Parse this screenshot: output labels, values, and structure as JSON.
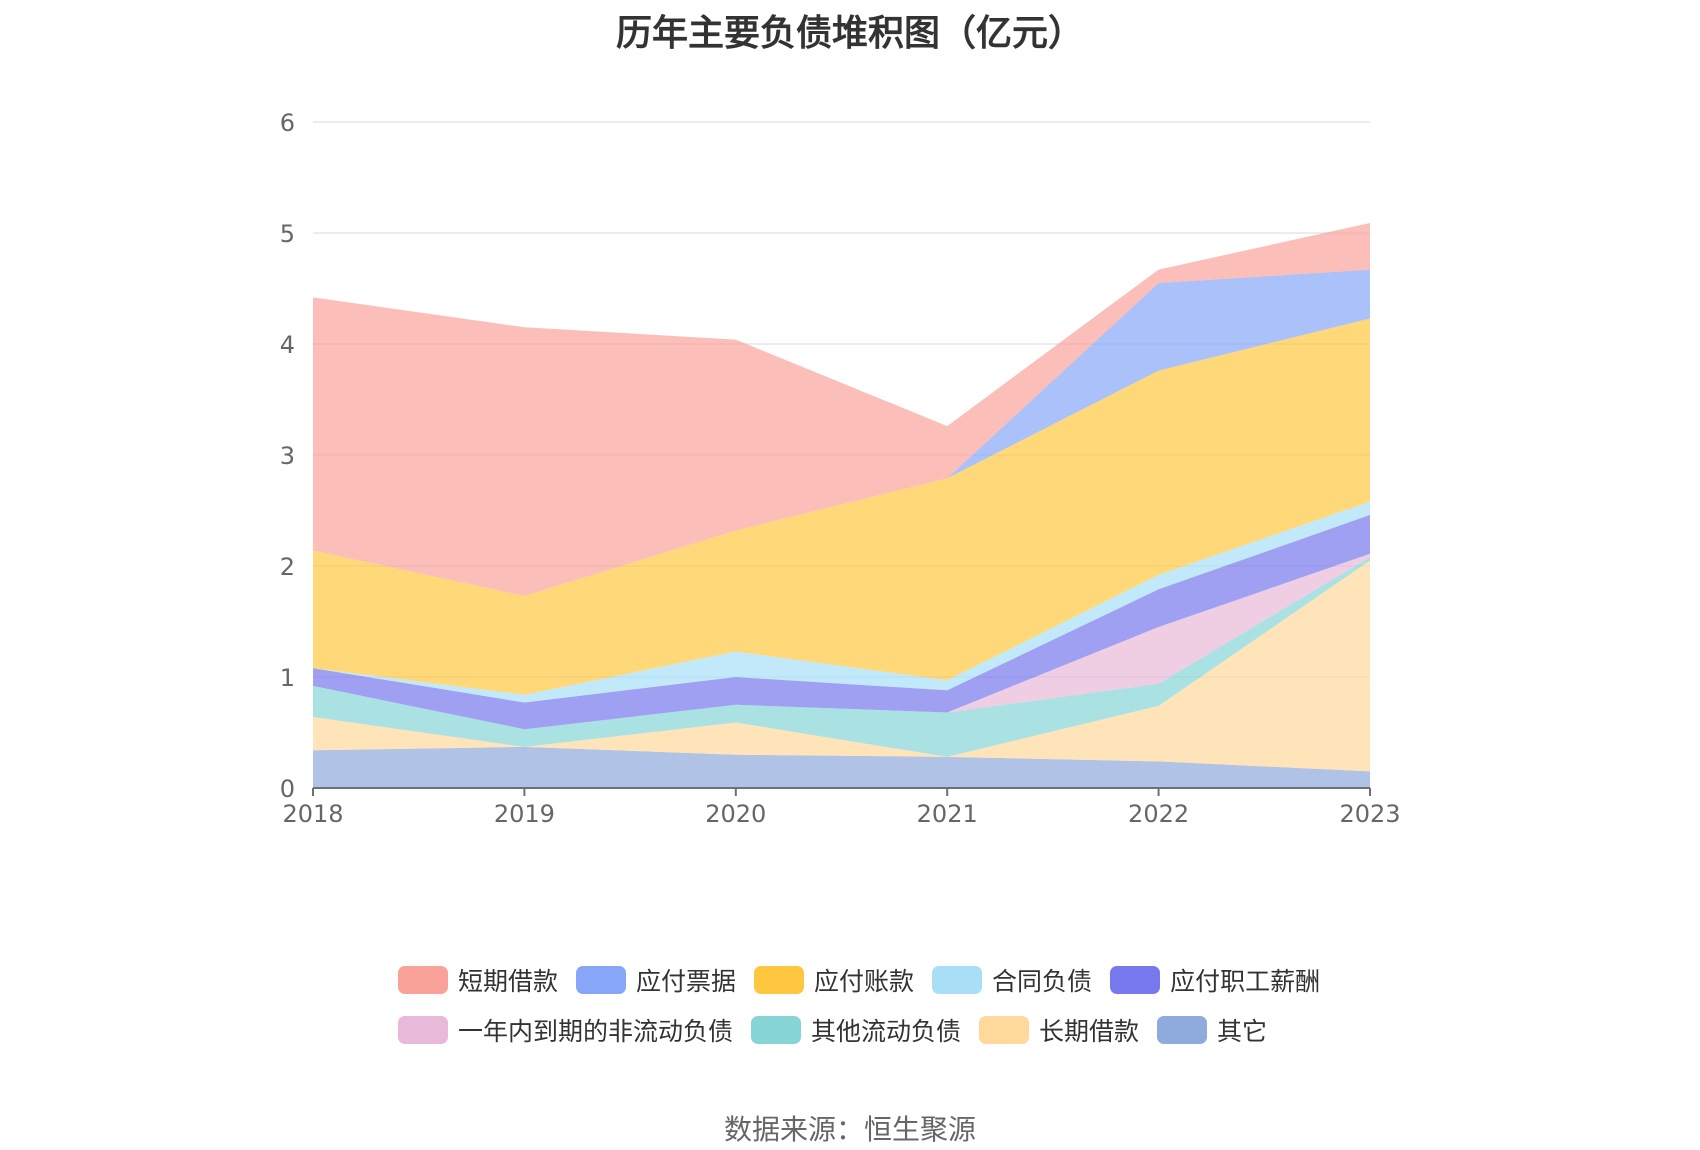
{
  "colors": {
    "grid": "#e0e6f1",
    "axis": "#6e7079",
    "tick_text": "#666666",
    "title_text": "#333333"
  },
  "chart_data": {
    "type": "area",
    "stacked": true,
    "title": "历年主要负债堆积图（亿元）",
    "source": "数据来源：恒生聚源",
    "xlabel": "",
    "ylabel": "",
    "x": [
      "2018",
      "2019",
      "2020",
      "2021",
      "2022",
      "2023"
    ],
    "ylim": [
      0,
      6
    ],
    "yticks": [
      "0",
      "1",
      "2",
      "3",
      "4",
      "5",
      "6"
    ],
    "grid": true,
    "legend_position": "bottom",
    "series": [
      {
        "name": "其它",
        "color": "#8faadc",
        "values": [
          0.34,
          0.37,
          0.3,
          0.28,
          0.24,
          0.15
        ]
      },
      {
        "name": "长期借款",
        "color": "#ffd89b",
        "values": [
          0.3,
          0.0,
          0.29,
          0.0,
          0.5,
          1.9
        ]
      },
      {
        "name": "其他流动负债",
        "color": "#86d4d6",
        "values": [
          0.28,
          0.16,
          0.16,
          0.4,
          0.2,
          0.03
        ]
      },
      {
        "name": "一年内到期的非流动负债",
        "color": "#e8b9d9",
        "values": [
          0.0,
          0.0,
          0.0,
          0.0,
          0.51,
          0.03
        ]
      },
      {
        "name": "应付职工薪酬",
        "color": "#7878ee",
        "values": [
          0.16,
          0.24,
          0.25,
          0.2,
          0.34,
          0.35
        ]
      },
      {
        "name": "合同负债",
        "color": "#a8dff6",
        "values": [
          0.0,
          0.07,
          0.23,
          0.09,
          0.13,
          0.12
        ]
      },
      {
        "name": "应付账款",
        "color": "#ffc740",
        "values": [
          1.06,
          0.89,
          1.09,
          1.82,
          1.84,
          1.65
        ]
      },
      {
        "name": "应付票据",
        "color": "#88a6f8",
        "values": [
          0.0,
          0.0,
          0.0,
          0.0,
          0.79,
          0.44
        ]
      },
      {
        "name": "短期借款",
        "color": "#f9a29a",
        "values": [
          2.28,
          2.42,
          1.72,
          0.47,
          0.12,
          0.42
        ]
      }
    ],
    "legend_order": [
      "短期借款",
      "应付票据",
      "应付账款",
      "合同负债",
      "应付职工薪酬",
      "一年内到期的非流动负债",
      "其他流动负债",
      "长期借款",
      "其它"
    ]
  }
}
